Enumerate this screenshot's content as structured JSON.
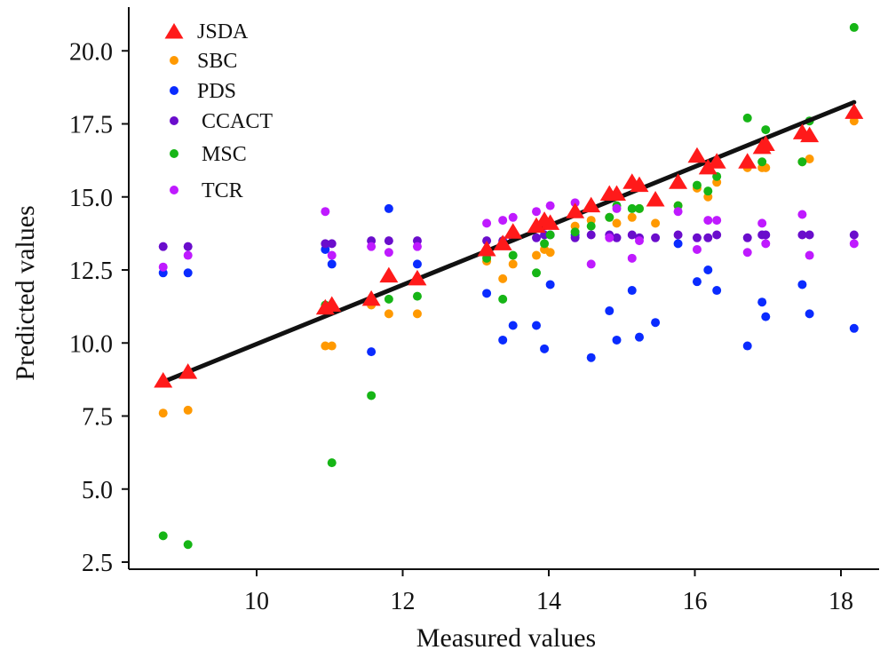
{
  "chart_data": {
    "type": "scatter",
    "title": "",
    "xlabel": "Measured values",
    "ylabel": "Predicted values",
    "xlim": [
      8.3,
      18.6
    ],
    "ylim": [
      2.25,
      21.3
    ],
    "xticks": [
      10,
      12,
      14,
      16,
      18
    ],
    "xtick_labels": [
      "10",
      "12",
      "14",
      "16",
      "18"
    ],
    "yticks": [
      2.5,
      5.0,
      7.5,
      10.0,
      12.5,
      15.0,
      17.5,
      20.0
    ],
    "ytick_labels": [
      "2.5",
      "5.0",
      "7.5",
      "10.0",
      "12.5",
      "15.0",
      "17.5",
      "20.0"
    ],
    "grid": false,
    "legend_position": "top-left",
    "x": [
      8.72,
      9.06,
      10.94,
      11.03,
      11.57,
      11.81,
      12.2,
      13.15,
      13.37,
      13.51,
      13.83,
      13.94,
      14.02,
      14.36,
      14.58,
      14.83,
      14.93,
      15.14,
      15.24,
      15.46,
      15.77,
      16.03,
      16.18,
      16.3,
      16.72,
      16.92,
      16.97,
      17.47,
      17.57,
      18.18
    ],
    "series": [
      {
        "name": "JSDA",
        "marker": "triangle",
        "color": "#ff1a1a",
        "values": [
          8.7,
          9.0,
          11.2,
          11.3,
          11.5,
          12.3,
          12.2,
          13.2,
          13.4,
          13.8,
          14.0,
          14.2,
          14.1,
          14.5,
          14.7,
          15.1,
          15.1,
          15.5,
          15.4,
          14.9,
          15.5,
          16.4,
          16.0,
          16.2,
          16.2,
          16.7,
          16.8,
          17.2,
          17.1,
          17.9
        ]
      },
      {
        "name": "SBC",
        "marker": "circle",
        "color": "#ff9900",
        "values": [
          7.6,
          7.7,
          9.9,
          9.9,
          11.3,
          11.0,
          11.0,
          12.8,
          12.2,
          12.7,
          13.0,
          13.2,
          13.1,
          14.0,
          14.2,
          14.3,
          14.1,
          14.3,
          14.6,
          14.1,
          14.7,
          15.3,
          15.0,
          15.5,
          16.0,
          16.0,
          16.0,
          16.2,
          16.3,
          17.6
        ]
      },
      {
        "name": "PDS",
        "marker": "circle",
        "color": "#0a2bff",
        "values": [
          12.4,
          12.4,
          13.2,
          12.7,
          9.7,
          14.6,
          12.7,
          11.7,
          10.1,
          10.6,
          10.6,
          9.8,
          12.0,
          13.7,
          9.5,
          11.1,
          10.1,
          11.8,
          10.2,
          10.7,
          13.4,
          12.1,
          12.5,
          11.8,
          9.9,
          11.4,
          10.9,
          12.0,
          11.0,
          10.5
        ]
      },
      {
        "name": "CCACT",
        "marker": "circle",
        "color": "#6a0dcc",
        "values": [
          13.3,
          13.3,
          13.4,
          13.4,
          13.5,
          13.5,
          13.5,
          13.5,
          13.5,
          13.6,
          13.6,
          13.7,
          13.7,
          13.6,
          13.7,
          13.7,
          13.6,
          13.7,
          13.6,
          13.6,
          13.7,
          13.6,
          13.6,
          13.7,
          13.6,
          13.7,
          13.7,
          13.7,
          13.7,
          13.7
        ]
      },
      {
        "name": "MSC",
        "marker": "circle",
        "color": "#16b516",
        "values": [
          3.4,
          3.1,
          11.3,
          5.9,
          8.2,
          11.5,
          11.6,
          12.9,
          11.5,
          13.0,
          12.4,
          13.4,
          13.7,
          13.8,
          14.0,
          14.3,
          14.7,
          14.6,
          14.6,
          14.9,
          14.7,
          15.4,
          15.2,
          15.7,
          17.7,
          16.2,
          17.3,
          16.2,
          17.6,
          20.8
        ]
      },
      {
        "name": "TCR",
        "marker": "circle",
        "color": "#bf1aff",
        "values": [
          12.6,
          13.0,
          14.5,
          13.0,
          13.3,
          13.1,
          13.3,
          14.1,
          14.2,
          14.3,
          14.5,
          14.0,
          14.7,
          14.8,
          12.7,
          13.6,
          14.6,
          12.9,
          13.5,
          14.9,
          14.5,
          13.2,
          14.2,
          14.2,
          13.1,
          14.1,
          13.4,
          14.4,
          13.0,
          13.4
        ]
      }
    ],
    "fit_line": {
      "name": "regression-line",
      "color": "#111111",
      "x": [
        8.72,
        18.18
      ],
      "y": [
        8.67,
        18.24
      ]
    }
  }
}
